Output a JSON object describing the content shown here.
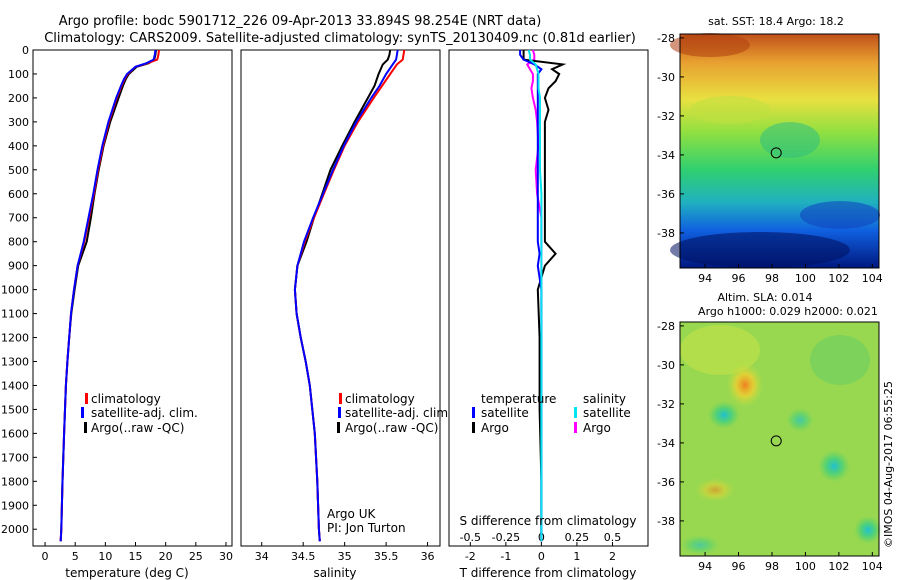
{
  "header": {
    "line1": "Argo profile: bodc 5901712_226 09-Apr-2013 33.894S 98.254E (NRT data)",
    "line2": "Climatology: CARS2009. Satellite-adjusted climatology: synTS_20130409.nc (0.81d earlier)"
  },
  "colors": {
    "climatology": "#ff0000",
    "satellite": "#0000ff",
    "argo": "#000000",
    "salinity_satellite": "#00e5ee",
    "salinity_argo": "#ff00ff"
  },
  "chart_data": [
    {
      "type": "line",
      "name": "temperature-profile",
      "xlabel": "temperature (deg C)",
      "xlim": [
        -2,
        31
      ],
      "ylim": [
        2070,
        0
      ],
      "xticks": [
        "0",
        "5",
        "10",
        "15",
        "20",
        "25",
        "30"
      ],
      "xtick_values": [
        0,
        5,
        10,
        15,
        20,
        25,
        30
      ],
      "yticks": [
        "0",
        "100",
        "200",
        "300",
        "400",
        "500",
        "600",
        "700",
        "800",
        "900",
        "1000",
        "1100",
        "1200",
        "1300",
        "1400",
        "1500",
        "1600",
        "1700",
        "1800",
        "1900",
        "2000"
      ],
      "ytick_values": [
        0,
        100,
        200,
        300,
        400,
        500,
        600,
        700,
        800,
        900,
        1000,
        1100,
        1200,
        1300,
        1400,
        1500,
        1600,
        1700,
        1800,
        1900,
        2000
      ],
      "legend": [
        "climatology",
        "satellite-adj. clim.",
        "Argo(..raw -QC)"
      ],
      "depth": [
        0,
        20,
        40,
        55,
        70,
        100,
        120,
        150,
        200,
        300,
        400,
        500,
        600,
        700,
        800,
        900,
        1000,
        1100,
        1200,
        1300,
        1400,
        1600,
        1800,
        2000,
        2050
      ],
      "series": [
        {
          "name": "climatology",
          "values": [
            18.9,
            18.8,
            18.6,
            17,
            15,
            13.7,
            13.2,
            12.7,
            11.9,
            10.6,
            9.6,
            8.8,
            8.1,
            7.3,
            6.5,
            5.4,
            4.8,
            4.3,
            4.0,
            3.7,
            3.45,
            3.15,
            2.9,
            2.7,
            2.6
          ]
        },
        {
          "name": "satellite-adj. clim.",
          "values": [
            18.3,
            18.2,
            18.0,
            16.8,
            15,
            13.6,
            13.1,
            12.6,
            11.8,
            10.5,
            9.5,
            8.7,
            8.0,
            7.2,
            6.4,
            5.4,
            4.8,
            4.3,
            4.0,
            3.7,
            3.45,
            3.15,
            2.9,
            2.7,
            2.6
          ]
        },
        {
          "name": "Argo(..raw -QC)",
          "values": [
            18.4,
            18.3,
            18.1,
            17.2,
            15.2,
            13.9,
            13.4,
            12.9,
            12.2,
            10.8,
            9.7,
            8.9,
            8.2,
            7.6,
            6.9,
            5.5,
            4.9,
            4.35,
            4.0,
            3.7,
            3.45,
            3.15,
            2.9,
            2.7,
            2.6
          ]
        }
      ]
    },
    {
      "type": "line",
      "name": "salinity-profile",
      "xlabel": "salinity",
      "xlim": [
        33.75,
        36.15
      ],
      "ylim": [
        2070,
        0
      ],
      "xticks": [
        "34",
        "34.5",
        "35",
        "35.5",
        "36"
      ],
      "xtick_values": [
        34,
        34.5,
        35,
        35.5,
        36
      ],
      "legend": [
        "climatology",
        "satellite-adj. clim.",
        "Argo(..raw -QC)"
      ],
      "credit": [
        "Argo UK",
        "PI: Jon Turton"
      ],
      "depth": [
        0,
        20,
        40,
        60,
        100,
        150,
        200,
        300,
        400,
        500,
        600,
        700,
        800,
        900,
        1000,
        1100,
        1200,
        1300,
        1400,
        1600,
        1800,
        2000,
        2050
      ],
      "series": [
        {
          "name": "climatology",
          "values": [
            35.72,
            35.71,
            35.7,
            35.63,
            35.55,
            35.45,
            35.35,
            35.16,
            35.0,
            34.87,
            34.75,
            34.63,
            34.52,
            34.43,
            34.4,
            34.42,
            34.47,
            34.53,
            34.58,
            34.64,
            34.67,
            34.69,
            34.7
          ]
        },
        {
          "name": "satellite-adj. clim.",
          "values": [
            35.64,
            35.63,
            35.62,
            35.58,
            35.5,
            35.42,
            35.32,
            35.14,
            34.99,
            34.86,
            34.74,
            34.62,
            34.51,
            34.43,
            34.4,
            34.42,
            34.47,
            34.53,
            34.58,
            34.64,
            34.67,
            34.69,
            34.7
          ]
        },
        {
          "name": "Argo(..raw -QC)",
          "values": [
            35.55,
            35.54,
            35.52,
            35.46,
            35.41,
            35.36,
            35.28,
            35.12,
            34.97,
            34.83,
            34.73,
            34.63,
            34.54,
            34.43,
            34.4,
            34.42,
            34.47,
            34.53,
            34.58,
            34.64,
            34.67,
            34.69,
            34.7
          ]
        }
      ]
    },
    {
      "type": "line",
      "name": "difference-profile",
      "xlabel": "T difference from climatology",
      "xlim": [
        -2.6,
        3
      ],
      "top_axis_label": "S difference from climatology",
      "top_ticks": [
        "-0.5",
        "-0.25",
        "0",
        "0.25",
        "0.5"
      ],
      "top_tick_values": [
        -0.5,
        -0.25,
        0,
        0.25,
        0.5
      ],
      "xticks": [
        "-2",
        "-1",
        "0",
        "1",
        "2"
      ],
      "xtick_values": [
        -2,
        -1,
        0,
        1,
        2
      ],
      "legend_titles": [
        "temperature",
        "salinity"
      ],
      "legend": [
        "satellite",
        "Argo",
        "satellite",
        "Argo"
      ],
      "depth": [
        0,
        20,
        40,
        60,
        80,
        100,
        130,
        160,
        200,
        250,
        300,
        400,
        500,
        600,
        700,
        800,
        850,
        900,
        1000,
        1200,
        1500,
        1800,
        2000,
        2050
      ],
      "series": [
        {
          "name": "T satellite",
          "values": [
            -0.6,
            -0.6,
            -0.5,
            -0.2,
            0,
            -0.1,
            -0.1,
            -0.1,
            -0.1,
            -0.1,
            -0.1,
            -0.1,
            -0.1,
            -0.1,
            -0.1,
            -0.1,
            -0.05,
            -0.1,
            0,
            0,
            0,
            0,
            0,
            0
          ]
        },
        {
          "name": "T Argo",
          "values": [
            -0.5,
            -0.5,
            -0.5,
            0.6,
            0.3,
            0.5,
            0.4,
            0.2,
            0.1,
            0.2,
            0.1,
            0.1,
            0.1,
            0.1,
            0.1,
            0.1,
            0.4,
            0.1,
            -0.1,
            -0.05,
            -0.05,
            0,
            0,
            0
          ]
        },
        {
          "name": "S satellite",
          "values": [
            -0.09,
            -0.08,
            -0.08,
            -0.04,
            -0.03,
            -0.02,
            -0.02,
            -0.02,
            -0.01,
            -0.01,
            -0.01,
            -0.01,
            -0.01,
            0,
            0,
            0,
            0,
            0,
            0,
            0,
            0,
            0,
            0,
            0
          ]
        },
        {
          "name": "S Argo",
          "values": [
            -0.06,
            -0.05,
            -0.05,
            -0.1,
            -0.08,
            -0.06,
            -0.06,
            -0.07,
            -0.06,
            -0.04,
            -0.03,
            -0.02,
            -0.04,
            -0.03,
            0,
            0,
            0,
            0,
            0,
            0,
            0,
            0,
            0,
            0
          ]
        }
      ]
    },
    {
      "type": "heatmap",
      "name": "sst-map",
      "title": "sat. SST: 18.4  Argo: 18.2",
      "xticks": [
        "94",
        "96",
        "98",
        "100",
        "102",
        "104"
      ],
      "xtick_values": [
        94,
        96,
        98,
        100,
        102,
        104
      ],
      "yticks": [
        "-28",
        "-30",
        "-32",
        "-34",
        "-36",
        "-38"
      ],
      "ytick_values": [
        -28,
        -30,
        -32,
        -34,
        -36,
        -38
      ],
      "xlim": [
        92.5,
        104.4
      ],
      "ylim": [
        -39.8,
        -27.8
      ],
      "marker": {
        "lon": 98.254,
        "lat": -33.894
      }
    },
    {
      "type": "heatmap",
      "name": "sla-map",
      "title": "Altim. SLA: 0.014",
      "subtitle": "Argo h1000: 0.029  h2000: 0.021",
      "xticks": [
        "94",
        "96",
        "98",
        "100",
        "102",
        "104"
      ],
      "xtick_values": [
        94,
        96,
        98,
        100,
        102,
        104
      ],
      "yticks": [
        "-28",
        "-30",
        "-32",
        "-34",
        "-36",
        "-38"
      ],
      "ytick_values": [
        -28,
        -30,
        -32,
        -34,
        -36,
        -38
      ],
      "xlim": [
        92.5,
        104.4
      ],
      "ylim": [
        -39.8,
        -27.8
      ],
      "marker": {
        "lon": 98.254,
        "lat": -33.894
      }
    }
  ],
  "footer": {
    "stamp": "©IMOS 04-Aug-2017 06:55:25"
  }
}
